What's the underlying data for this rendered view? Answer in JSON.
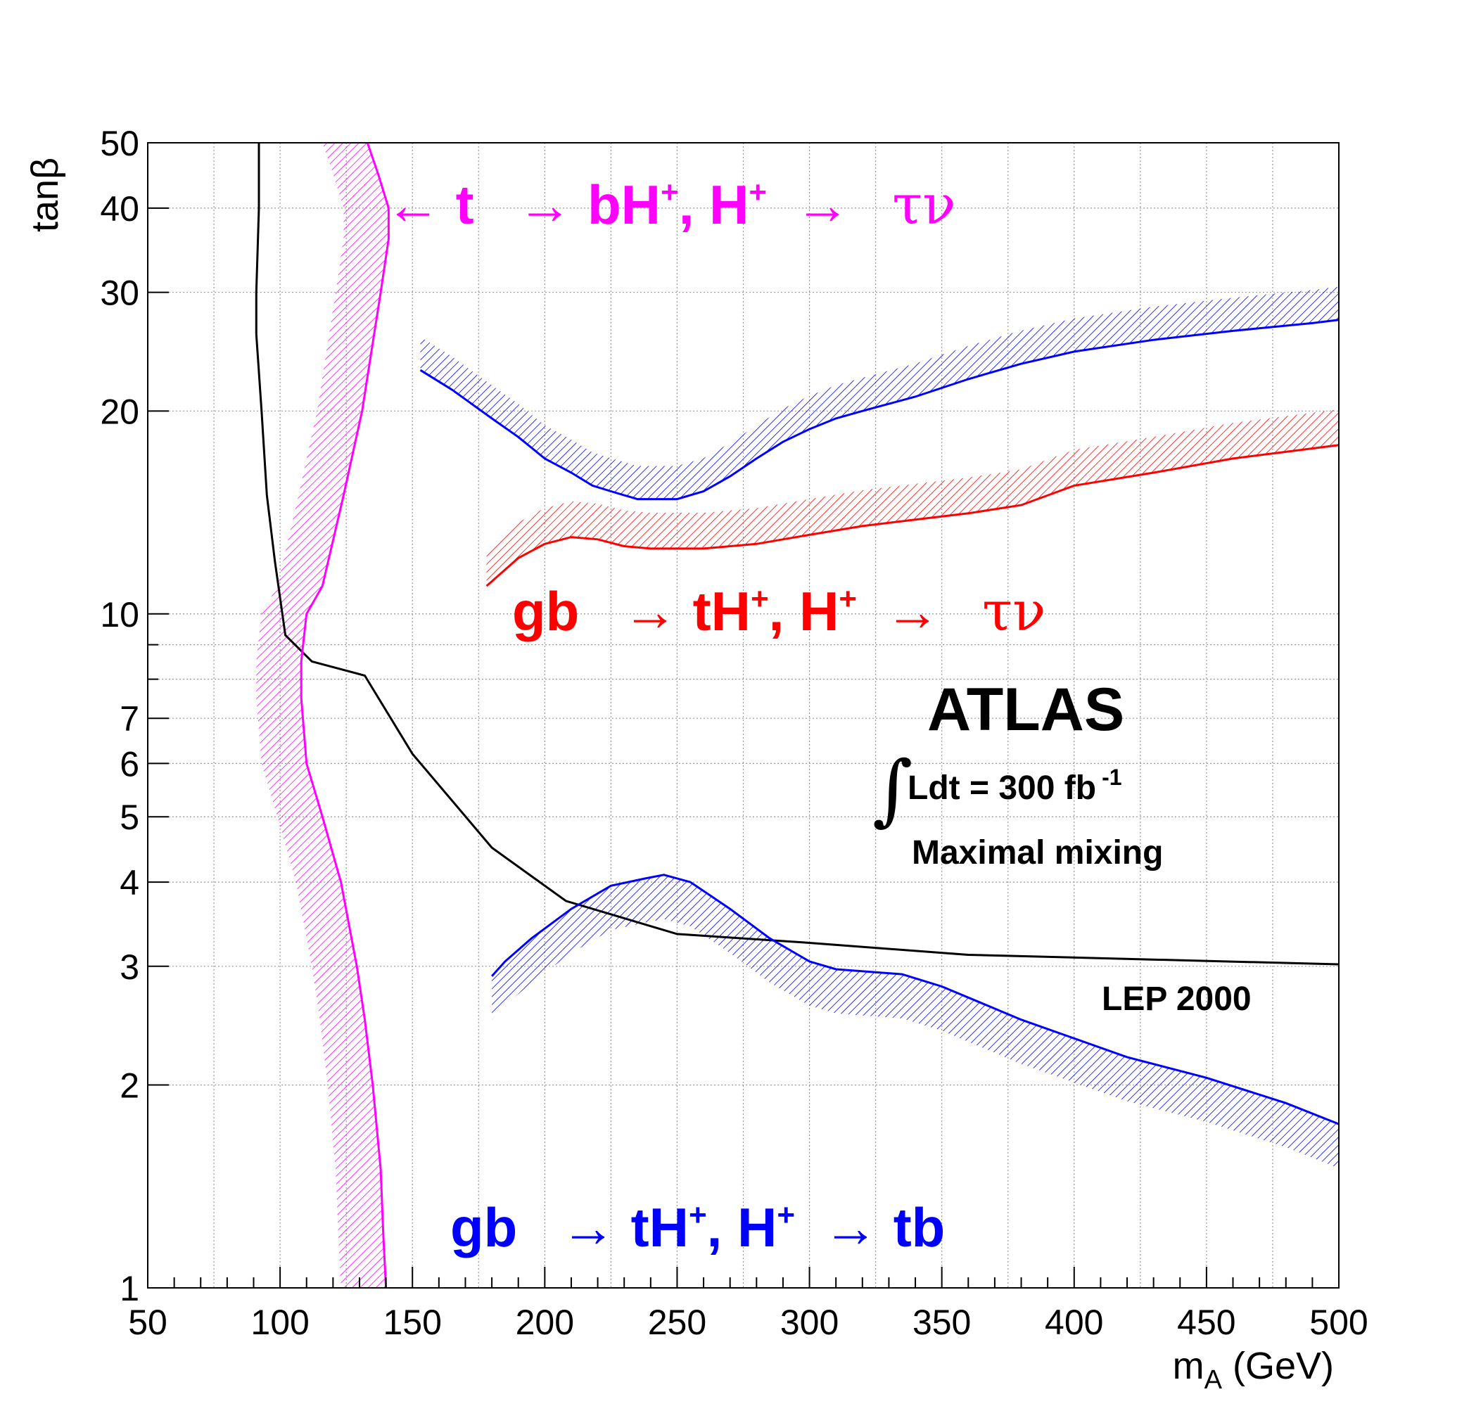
{
  "chart_data": {
    "type": "line",
    "xlabel": "m",
    "xlabel_sub": "A",
    "xlabel_unit": " (GeV)",
    "ylabel": "tanβ",
    "xlim": [
      50,
      500
    ],
    "ylim": [
      1,
      50
    ],
    "y_scale": "log",
    "grid": true,
    "x_ticks": [
      50,
      100,
      150,
      200,
      250,
      300,
      350,
      400,
      450,
      500
    ],
    "y_ticks": [
      1,
      2,
      3,
      4,
      5,
      6,
      7,
      10,
      20,
      30,
      40,
      50
    ],
    "colors": {
      "magenta": "#ff00ff",
      "red": "#ff0000",
      "blue": "#0000ff",
      "black": "#000000"
    },
    "series": [
      {
        "color": "#000000",
        "x": [
          92,
          92,
          91,
          91,
          93,
          95,
          98,
          102,
          112,
          132,
          150,
          180,
          208,
          250,
          300,
          360,
          500
        ],
        "y": [
          50,
          40,
          30,
          26,
          20,
          15,
          12,
          9.3,
          8.5,
          8.1,
          6.2,
          4.5,
          3.75,
          3.35,
          3.25,
          3.12,
          3.02
        ]
      },
      {
        "color": "#ff00ff",
        "x": [
          133,
          137,
          141,
          141,
          138,
          131,
          124,
          116,
          110,
          108,
          108,
          110,
          116,
          123,
          129,
          132,
          135,
          138,
          139,
          140
        ],
        "y": [
          50,
          45,
          40,
          36,
          30,
          20,
          15,
          11,
          10,
          8.5,
          7.5,
          6,
          5,
          4,
          3,
          2.5,
          2,
          1.5,
          1.2,
          1
        ],
        "band_offset_x": -17
      },
      {
        "color": "#0000ff",
        "x": [
          153,
          165,
          180,
          190,
          200,
          210,
          218,
          225,
          235,
          250,
          260,
          270,
          280,
          290,
          300,
          310,
          320,
          340,
          360,
          380,
          400,
          430,
          460,
          490,
          500
        ],
        "y": [
          23,
          21.5,
          19.5,
          18.3,
          17,
          16.2,
          15.5,
          15.2,
          14.8,
          14.8,
          15.2,
          16,
          17,
          18,
          18.8,
          19.5,
          20,
          21,
          22.3,
          23.5,
          24.5,
          25.5,
          26.3,
          27,
          27.3
        ],
        "band_offset_y": 1.12
      },
      {
        "color": "#ff0000",
        "x": [
          178,
          190,
          200,
          210,
          220,
          230,
          240,
          260,
          280,
          290,
          300,
          320,
          340,
          360,
          380,
          400,
          430,
          460,
          500
        ],
        "y": [
          11,
          12.1,
          12.7,
          13,
          12.9,
          12.6,
          12.5,
          12.5,
          12.7,
          12.9,
          13.1,
          13.5,
          13.8,
          14.1,
          14.5,
          15.5,
          16.2,
          17,
          17.8
        ],
        "band_offset_y": 1.13
      },
      {
        "color": "#0000ff",
        "x": [
          180,
          185,
          195,
          210,
          225,
          238,
          245,
          255,
          270,
          285,
          300,
          310,
          335,
          350,
          380,
          420,
          450,
          480,
          500
        ],
        "y": [
          2.9,
          3.05,
          3.3,
          3.65,
          3.95,
          4.05,
          4.1,
          4.0,
          3.65,
          3.3,
          3.05,
          2.97,
          2.92,
          2.8,
          2.5,
          2.2,
          2.05,
          1.88,
          1.75
        ],
        "band_offset_y": 0.86
      }
    ],
    "annotations": {
      "magenta": {
        "arrow": "←",
        "p1": " t ",
        "arrow2": "→",
        "p2": " bH",
        "sup": "+",
        "p3": ", H",
        "sup2": "+",
        "arrow3": "→",
        "greek": "τν"
      },
      "red": {
        "p0": "gb ",
        "arrow": "→",
        "p1": " tH",
        "sup": "+",
        "p2": ", H",
        "sup2": "+",
        "arrow2": "→",
        "greek": "τν"
      },
      "blue": {
        "p0": "gb ",
        "arrow": "→",
        "p1": " tH",
        "sup": "+",
        "p2": ", H",
        "sup2": "+",
        "arrow2": "→",
        "p3": " tb"
      },
      "atlas": "ATLAS",
      "integral": "∫",
      "lumi": "Ldt = 300 fb",
      "lumi_exp": "-1",
      "mixing": "Maximal mixing",
      "lep": "LEP 2000"
    }
  }
}
